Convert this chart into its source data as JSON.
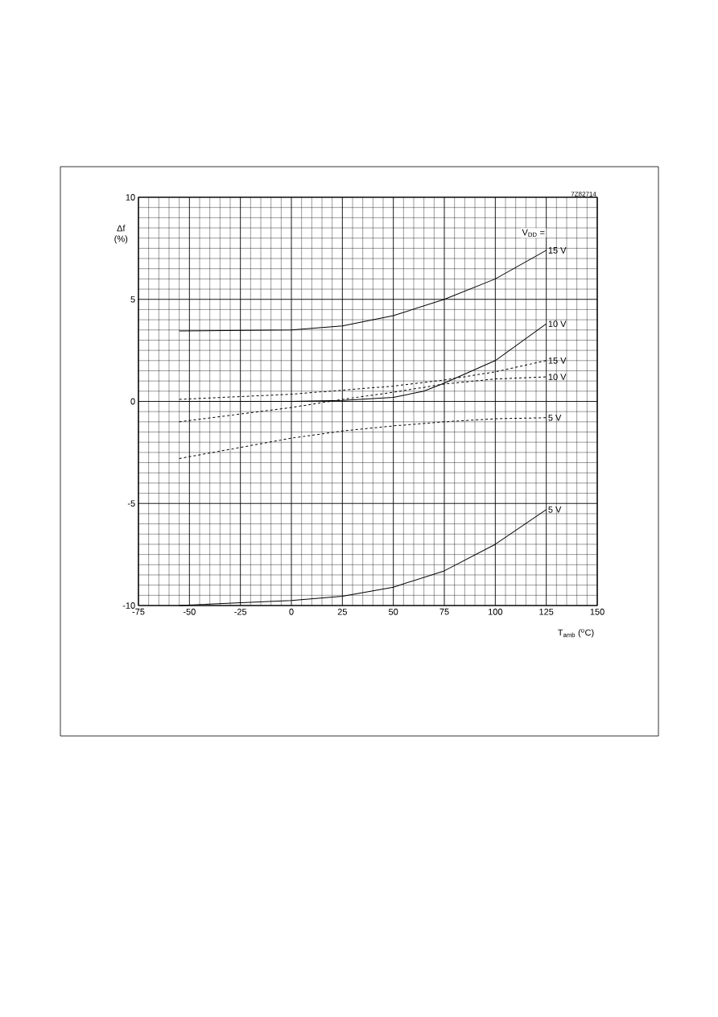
{
  "chart_data": {
    "type": "line",
    "xlabel": "T$_{amb}$ ($^{o}$C)",
    "ylabel": "Δf (%)",
    "legend_title": "V$_{DD}$ =",
    "annotations": [
      "7Z82714"
    ],
    "xlim": [
      -75,
      150
    ],
    "ylim": [
      -10,
      10
    ],
    "xticks": [
      -75,
      -50,
      -25,
      0,
      25,
      50,
      75,
      100,
      125,
      150
    ],
    "yticks": [
      -10,
      -5,
      0,
      5,
      10
    ],
    "grid": true,
    "series": [
      {
        "name": "15 V",
        "color": "#000000",
        "line_style": "solid",
        "x": [
          -55,
          0,
          25,
          50,
          75,
          100,
          125
        ],
        "values": [
          3.45,
          3.5,
          3.7,
          4.2,
          5.0,
          6.0,
          7.4
        ]
      },
      {
        "name": "10 V",
        "color": "#000000",
        "line_style": "solid",
        "x": [
          -55,
          0,
          25,
          50,
          65,
          75,
          100,
          125
        ],
        "values": [
          0.0,
          0.0,
          0.05,
          0.2,
          0.5,
          0.9,
          2.0,
          3.8
        ]
      },
      {
        "name": "15 V",
        "color": "#000000",
        "line_style": "dashed",
        "x": [
          -55,
          0,
          50,
          75,
          100,
          125
        ],
        "values": [
          0.1,
          0.35,
          0.75,
          1.05,
          1.45,
          2.0
        ]
      },
      {
        "name": "10 V",
        "color": "#000000",
        "line_style": "dashed",
        "x": [
          -55,
          0,
          25,
          50,
          75,
          100,
          125
        ],
        "values": [
          -1.0,
          -0.3,
          0.1,
          0.45,
          0.85,
          1.1,
          1.2
        ]
      },
      {
        "name": "5 V",
        "color": "#000000",
        "line_style": "dashed",
        "x": [
          -55,
          0,
          25,
          50,
          75,
          100,
          125
        ],
        "values": [
          -2.8,
          -1.8,
          -1.45,
          -1.2,
          -1.0,
          -0.85,
          -0.8
        ]
      },
      {
        "name": "5 V",
        "color": "#000000",
        "line_style": "solid",
        "x": [
          -55,
          0,
          25,
          50,
          75,
          100,
          125
        ],
        "values": [
          -10.0,
          -9.75,
          -9.55,
          -9.1,
          -8.3,
          -7.0,
          -5.3
        ]
      }
    ]
  }
}
